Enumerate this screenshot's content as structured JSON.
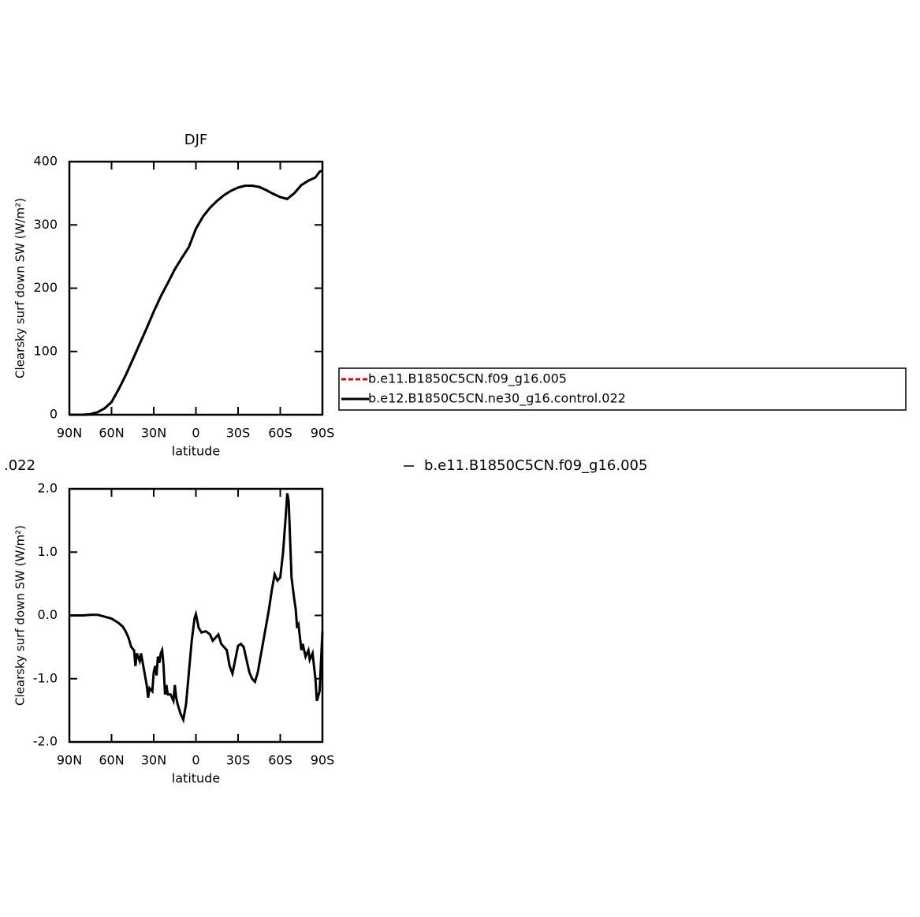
{
  "chart_data": [
    {
      "type": "line",
      "title": "DJF",
      "xlabel": "latitude",
      "ylabel": "Clearsky surf down SW (W/m²)",
      "x": [
        90,
        80,
        75,
        70,
        65,
        60,
        55,
        50,
        45,
        40,
        35,
        30,
        25,
        20,
        15,
        10,
        5,
        0,
        -5,
        -10,
        -15,
        -20,
        -25,
        -30,
        -35,
        -40,
        -45,
        -50,
        -55,
        -60,
        -65,
        -70,
        -75,
        -80,
        -85,
        -88,
        -90
      ],
      "series": [
        {
          "name": "b.e11.B1850C5CN.f09_g16.005",
          "color": "#e00000",
          "dashed": true,
          "values": [
            0,
            0,
            1,
            4,
            10,
            20,
            40,
            62,
            87,
            112,
            137,
            163,
            187,
            208,
            230,
            248,
            265,
            294,
            313,
            327,
            338,
            347,
            354,
            359,
            362,
            362,
            360,
            355,
            349,
            344,
            341,
            350,
            363,
            370,
            375,
            384,
            386
          ]
        },
        {
          "name": "b.e12.B1850C5CN.ne30_g16.control.022",
          "color": "#000000",
          "dashed": false,
          "values": [
            0,
            0,
            1,
            4,
            10,
            20,
            40,
            62,
            87,
            112,
            137,
            163,
            187,
            208,
            230,
            248,
            265,
            294,
            313,
            327,
            338,
            347,
            354,
            359,
            362,
            362,
            360,
            355,
            349,
            344,
            341,
            350,
            363,
            370,
            375,
            384,
            386
          ]
        }
      ],
      "xlim": [
        90,
        -90
      ],
      "xticks": [
        {
          "value": 90,
          "label": "90N"
        },
        {
          "value": 60,
          "label": "60N"
        },
        {
          "value": 30,
          "label": "30N"
        },
        0,
        {
          "value": -30,
          "label": "30S"
        },
        {
          "value": -60,
          "label": "60S"
        },
        {
          "value": -90,
          "label": "90S"
        }
      ],
      "ylim": [
        0,
        400
      ],
      "yticks": [
        0,
        100,
        200,
        300,
        400
      ]
    },
    {
      "type": "line",
      "xlabel": "latitude",
      "ylabel": "Clearsky surf down SW (W/m²)",
      "annotations": [
        ".022",
        "b.e11.B1850C5CN.f09_g16.005"
      ],
      "x": [
        90,
        80,
        75,
        70,
        65,
        60,
        55,
        52,
        50,
        48,
        46,
        44,
        43,
        42,
        40,
        39,
        37,
        35,
        34,
        33,
        31,
        30,
        29,
        28,
        27,
        26,
        25,
        24,
        23,
        22,
        21,
        20,
        18,
        16,
        15,
        14,
        13,
        11,
        9,
        7,
        5,
        3,
        1,
        0,
        -2,
        -4,
        -7,
        -10,
        -12,
        -14,
        -16,
        -18,
        -20,
        -22,
        -24,
        -26,
        -28,
        -30,
        -32,
        -34,
        -36,
        -38,
        -40,
        -42,
        -44,
        -46,
        -48,
        -50,
        -52,
        -54,
        -56,
        -58,
        -60,
        -62,
        -64,
        -65,
        -66,
        -67,
        -68,
        -70,
        -71,
        -72,
        -73,
        -75,
        -76,
        -78,
        -80,
        -81,
        -83,
        -85,
        -86,
        -88,
        -90
      ],
      "series": [
        {
          "color": "#000000",
          "dashed": false,
          "values": [
            0,
            0,
            0.01,
            0.01,
            -0.02,
            -0.05,
            -0.12,
            -0.18,
            -0.25,
            -0.35,
            -0.5,
            -0.55,
            -0.8,
            -0.6,
            -0.72,
            -0.6,
            -0.85,
            -1.1,
            -1.3,
            -1.15,
            -1.2,
            -0.9,
            -0.8,
            -0.95,
            -0.65,
            -0.75,
            -0.6,
            -0.55,
            -0.8,
            -1.25,
            -1.1,
            -1.25,
            -1.25,
            -1.35,
            -1.1,
            -1.3,
            -1.4,
            -1.55,
            -1.65,
            -1.4,
            -0.9,
            -0.4,
            -0.05,
            0.02,
            -0.2,
            -0.27,
            -0.25,
            -0.3,
            -0.4,
            -0.35,
            -0.3,
            -0.45,
            -0.5,
            -0.55,
            -0.8,
            -0.92,
            -0.7,
            -0.48,
            -0.45,
            -0.5,
            -0.7,
            -0.9,
            -1.0,
            -1.05,
            -0.9,
            -0.65,
            -0.4,
            -0.15,
            0.1,
            0.4,
            0.65,
            0.55,
            0.6,
            1.0,
            1.6,
            1.93,
            1.8,
            1.2,
            0.6,
            0.25,
            0.1,
            -0.2,
            -0.15,
            -0.55,
            -0.45,
            -0.65,
            -0.55,
            -0.7,
            -0.6,
            -1.0,
            -1.35,
            -1.2,
            -0.25
          ]
        }
      ],
      "xlim": [
        90,
        -90
      ],
      "xticks": [
        {
          "value": 90,
          "label": "90N"
        },
        {
          "value": 60,
          "label": "60N"
        },
        {
          "value": 30,
          "label": "30N"
        },
        0,
        {
          "value": -30,
          "label": "30S"
        },
        {
          "value": -60,
          "label": "60S"
        },
        {
          "value": -90,
          "label": "90S"
        }
      ],
      "ylim": [
        -2,
        2
      ],
      "yticks": [
        {
          "value": 2,
          "label": "2.0"
        },
        {
          "value": 1,
          "label": "1.0"
        },
        {
          "value": 0,
          "label": "0.0"
        },
        {
          "value": -1,
          "label": "-1.0"
        },
        {
          "value": -2,
          "label": "-2.0"
        }
      ]
    }
  ]
}
